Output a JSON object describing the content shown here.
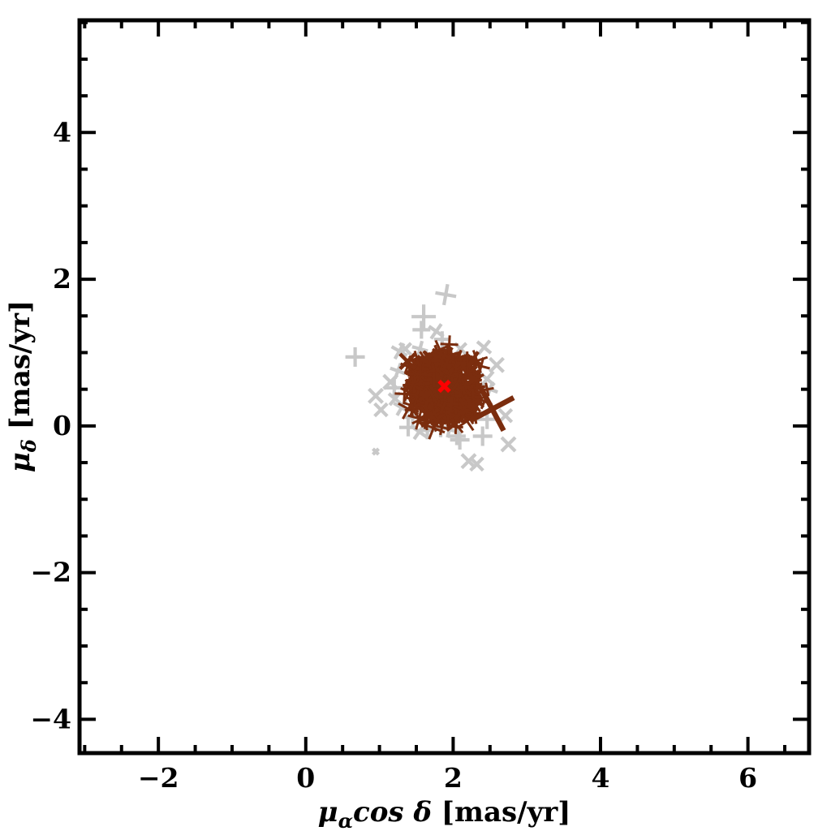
{
  "chart_data": {
    "type": "scatter",
    "title": "",
    "xlabel": "μ_α cos δ [mas/yr]",
    "ylabel": "μ_δ [mas/yr]",
    "xlabel_parts": {
      "mu": "μ",
      "sub": "α",
      "mid": "cos δ",
      "unit": " [mas/yr]"
    },
    "ylabel_parts": {
      "mu": "μ",
      "sub": "δ",
      "unit": " [mas/yr]"
    },
    "xlim": [
      -3.07,
      6.83
    ],
    "ylim": [
      -4.46,
      5.53
    ],
    "x_major_ticks": [
      -2,
      0,
      2,
      4,
      6
    ],
    "y_major_ticks": [
      -4,
      -2,
      0,
      2,
      4
    ],
    "minor_tick_step": 0.5,
    "grid": false,
    "legend": false,
    "colors": {
      "cluster": "#7B2D0E",
      "field": "#C8C8C8",
      "mean": "#FF0000",
      "axis": "#000000",
      "background": "#FFFFFF"
    },
    "series": [
      {
        "name": "field_stars",
        "marker": "cross",
        "color_key": "field",
        "stroke_px": 4.2,
        "points": [
          {
            "x": 1.9,
            "y": 1.79,
            "rot": 10,
            "size": 13
          },
          {
            "x": 1.6,
            "y": 1.49,
            "rot": 0,
            "size": 15
          },
          {
            "x": 1.57,
            "y": 1.31,
            "rot": 0,
            "size": 11
          },
          {
            "x": 1.77,
            "y": 1.29,
            "rot": 35,
            "size": 11
          },
          {
            "x": 1.85,
            "y": 1.18,
            "rot": 0,
            "size": 10
          },
          {
            "x": 1.88,
            "y": 1.02,
            "rot": 20,
            "size": 10
          },
          {
            "x": 0.67,
            "y": 0.94,
            "rot": 0,
            "size": 12
          },
          {
            "x": 1.27,
            "y": 1.02,
            "rot": 30,
            "size": 11
          },
          {
            "x": 1.35,
            "y": 1.05,
            "rot": 45,
            "size": 10
          },
          {
            "x": 1.55,
            "y": 1.05,
            "rot": 15,
            "size": 10
          },
          {
            "x": 2.1,
            "y": 1.05,
            "rot": 45,
            "size": 10
          },
          {
            "x": 2.42,
            "y": 1.07,
            "rot": 40,
            "size": 11
          },
          {
            "x": 2.59,
            "y": 0.83,
            "rot": 45,
            "size": 12
          },
          {
            "x": 2.46,
            "y": 0.64,
            "rot": 40,
            "size": 12
          },
          {
            "x": 2.25,
            "y": 0.65,
            "rot": 30,
            "size": 11
          },
          {
            "x": 2.35,
            "y": 0.45,
            "rot": 45,
            "size": 12
          },
          {
            "x": 2.3,
            "y": 0.3,
            "rot": 0,
            "size": 11
          },
          {
            "x": 2.5,
            "y": 0.5,
            "rot": 20,
            "size": 10
          },
          {
            "x": 1.15,
            "y": 0.6,
            "rot": 45,
            "size": 12
          },
          {
            "x": 1.2,
            "y": 0.52,
            "rot": 0,
            "size": 11
          },
          {
            "x": 1.25,
            "y": 0.75,
            "rot": 20,
            "size": 10
          },
          {
            "x": 1.3,
            "y": 0.25,
            "rot": 30,
            "size": 11
          },
          {
            "x": 1.45,
            "y": 0.12,
            "rot": 0,
            "size": 11
          },
          {
            "x": 0.95,
            "y": 0.41,
            "rot": 45,
            "size": 12
          },
          {
            "x": 1.02,
            "y": 0.22,
            "rot": 45,
            "size": 11
          },
          {
            "x": 1.21,
            "y": 0.37,
            "rot": 40,
            "size": 10
          },
          {
            "x": 1.39,
            "y": -0.02,
            "rot": 0,
            "size": 11
          },
          {
            "x": 1.54,
            "y": -0.08,
            "rot": 35,
            "size": 11
          },
          {
            "x": 1.65,
            "y": -0.06,
            "rot": 0,
            "size": 11
          },
          {
            "x": 1.75,
            "y": 0.02,
            "rot": 45,
            "size": 10
          },
          {
            "x": 1.83,
            "y": -0.02,
            "rot": 0,
            "size": 12
          },
          {
            "x": 1.95,
            "y": -0.05,
            "rot": 15,
            "size": 10
          },
          {
            "x": 2.05,
            "y": -0.14,
            "rot": 0,
            "size": 11
          },
          {
            "x": 2.09,
            "y": -0.19,
            "rot": 0,
            "size": 12
          },
          {
            "x": 2.4,
            "y": -0.14,
            "rot": 0,
            "size": 12
          },
          {
            "x": 2.46,
            "y": 0.09,
            "rot": 0,
            "size": 12
          },
          {
            "x": 2.71,
            "y": 0.14,
            "rot": 45,
            "size": 11
          },
          {
            "x": 2.75,
            "y": -0.25,
            "rot": 45,
            "size": 12
          },
          {
            "x": 0.95,
            "y": -0.35,
            "rot": 45,
            "size": 5
          },
          {
            "x": 2.21,
            "y": -0.48,
            "rot": 45,
            "size": 12
          },
          {
            "x": 2.32,
            "y": -0.52,
            "rot": 45,
            "size": 11
          }
        ]
      },
      {
        "name": "cluster_members_dense_clump",
        "marker": "cross",
        "color_key": "cluster",
        "generated": true,
        "center": [
          1.88,
          0.54
        ],
        "radius_units": 0.46,
        "count": 500,
        "note": "hundreds of overlapping small crosses forming a solid ragged clump"
      },
      {
        "name": "cluster_outlier_crosses",
        "marker": "cross",
        "color_key": "cluster",
        "stroke_px": 4.5,
        "points": [
          {
            "x": 2.53,
            "y": 0.23,
            "rot": -28,
            "size": 30,
            "sw": 6.5
          },
          {
            "x": 1.38,
            "y": 0.88,
            "rot": 45,
            "size": 13
          },
          {
            "x": 2.27,
            "y": 0.91,
            "rot": 35,
            "size": 11
          }
        ]
      },
      {
        "name": "mean_proper_motion",
        "marker": "x",
        "color_key": "mean",
        "stroke_px": 5,
        "points": [
          {
            "x": 1.88,
            "y": 0.54,
            "rot": 45,
            "size": 9
          }
        ]
      }
    ]
  }
}
